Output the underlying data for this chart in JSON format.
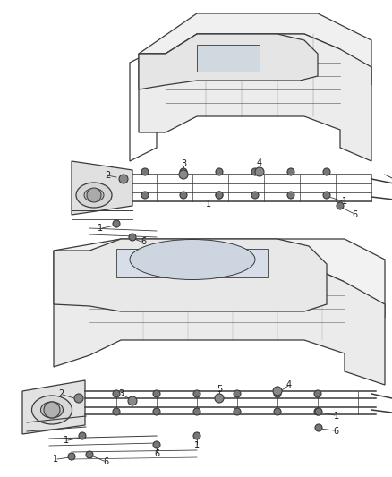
{
  "background_color": "#ffffff",
  "line_color": "#3a3a3a",
  "label_color": "#1a1a1a",
  "fig_width": 4.38,
  "fig_height": 5.33,
  "dpi": 100,
  "top_diagram": {
    "body_color": "#e8e8e8",
    "frame_color": "#555555"
  },
  "bottom_diagram": {
    "body_color": "#e0e0e0",
    "frame_color": "#444444"
  }
}
